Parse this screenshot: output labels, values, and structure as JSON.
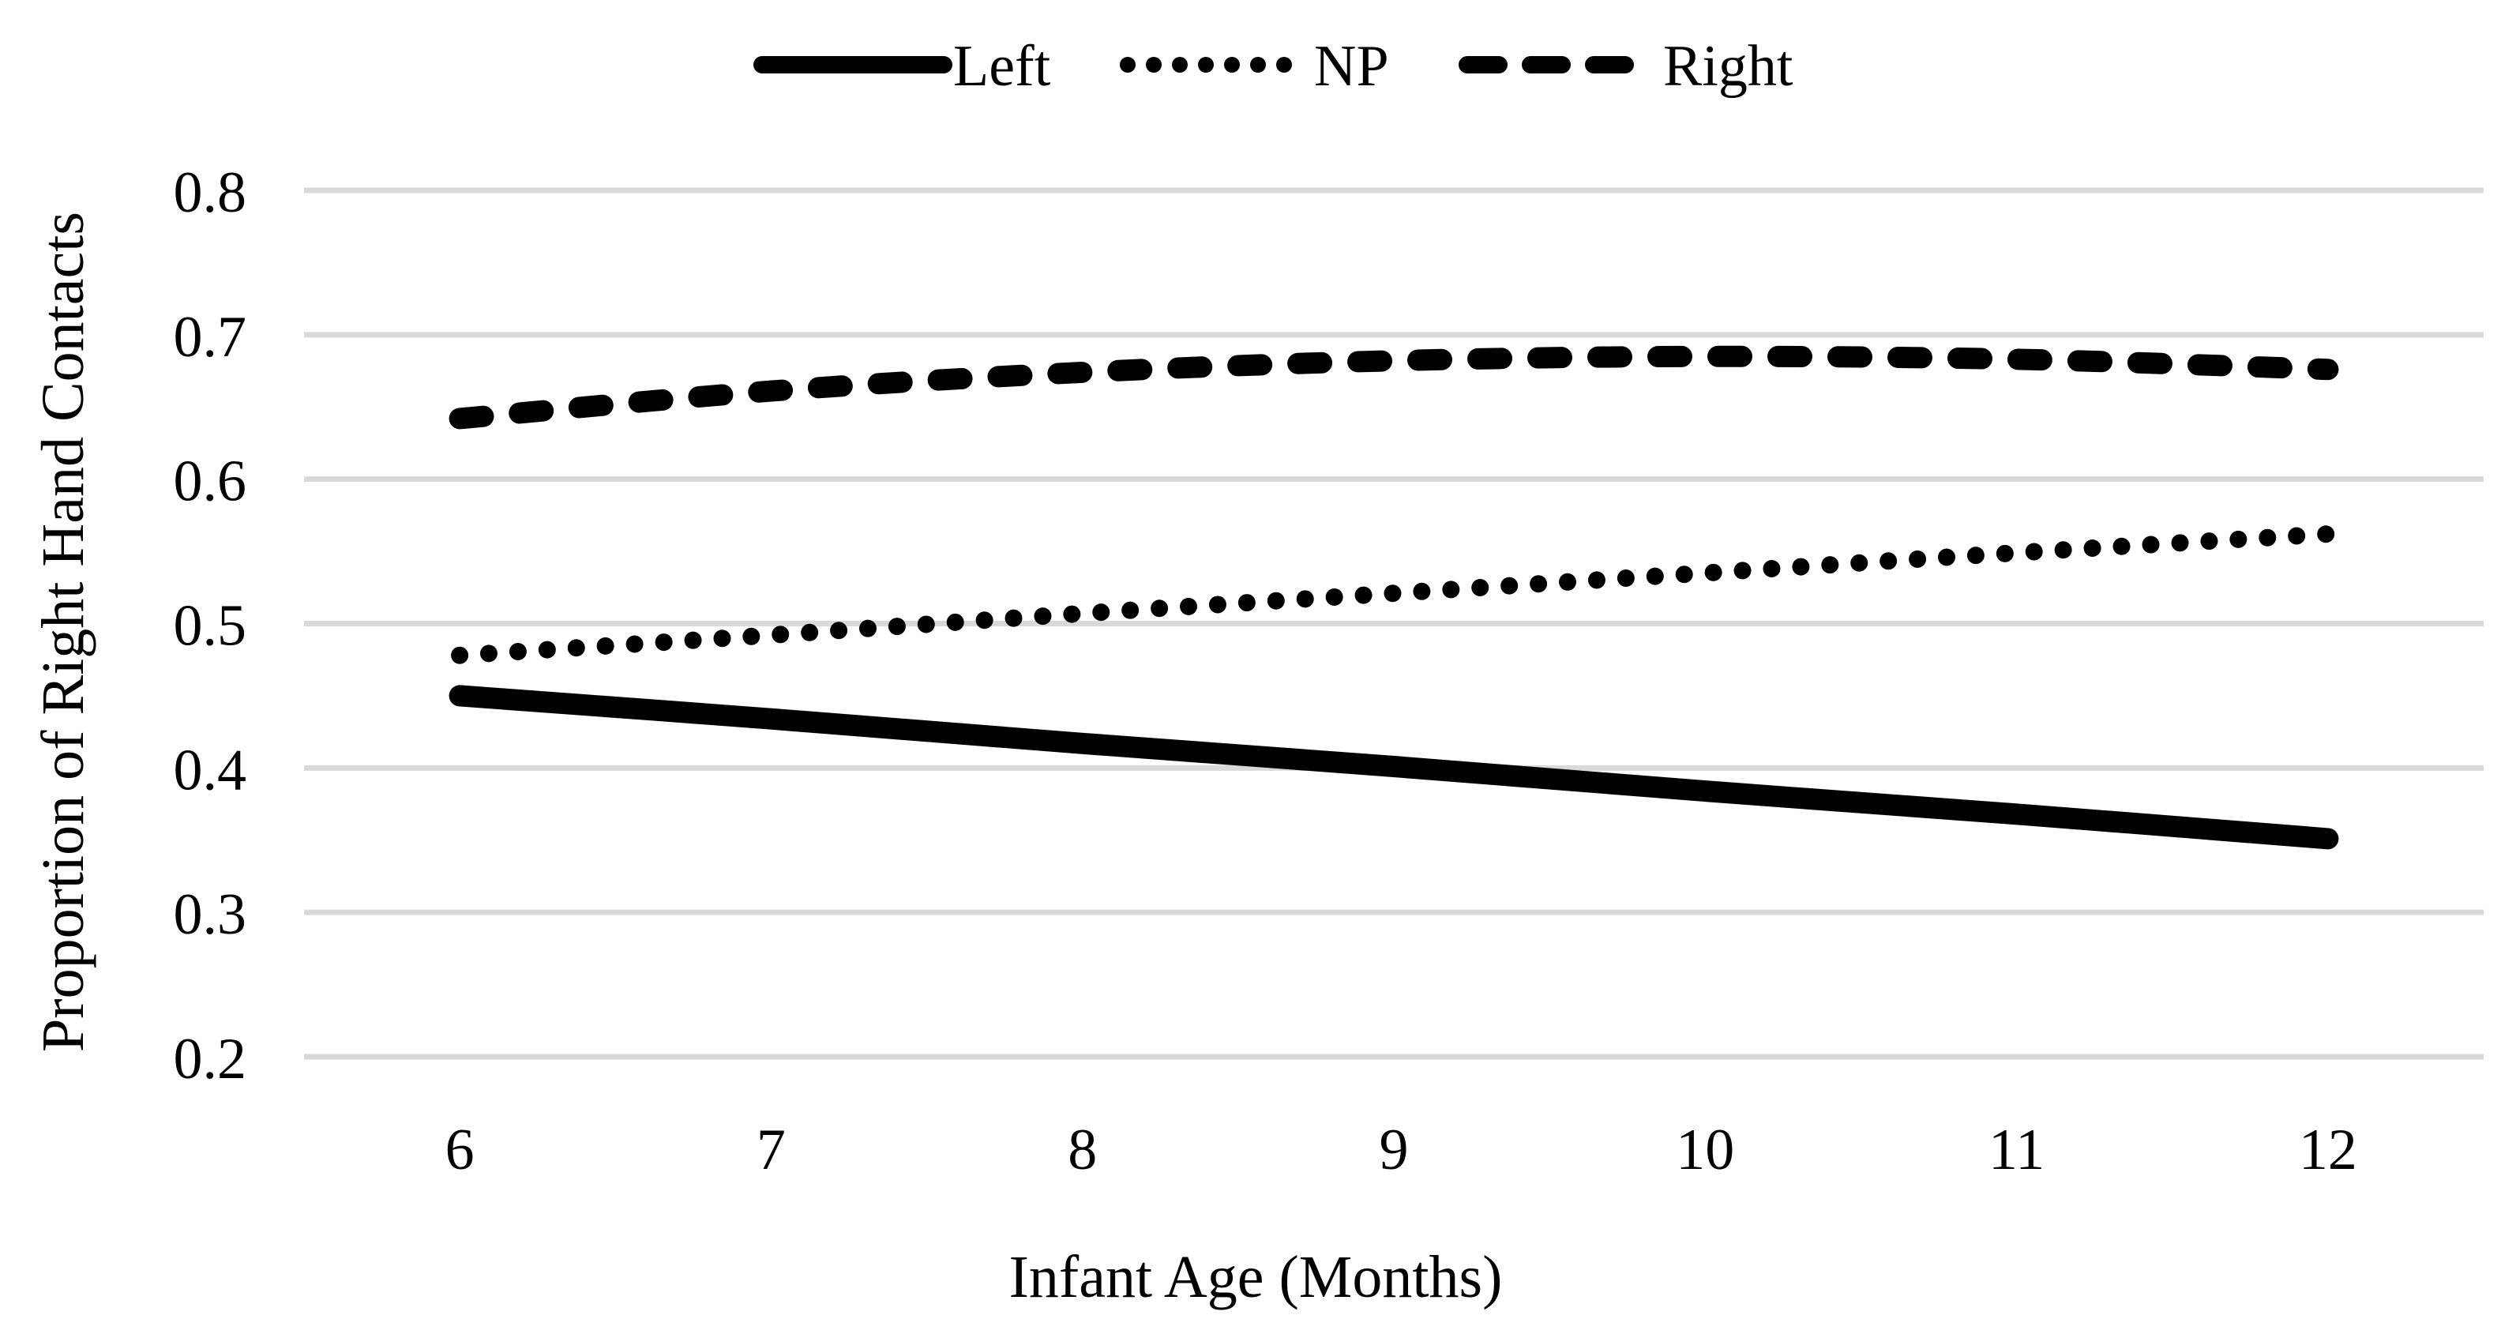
{
  "chart_data": {
    "type": "line",
    "title": "",
    "xlabel": "Infant Age (Months)",
    "ylabel": "Proportion of Right Hand Contacts",
    "xticks": [
      "6",
      "7",
      "8",
      "9",
      "10",
      "11",
      "12"
    ],
    "yticks": [
      "0.8",
      "0.7",
      "0.6",
      "0.5",
      "0.4",
      "0.3",
      "0.2"
    ],
    "xlim": [
      5.5,
      12.5
    ],
    "ylim": [
      0.2,
      0.8
    ],
    "grid": "horizontal-only",
    "gridline_color": "#d9d9d9",
    "series_color": "#000000",
    "background_color": "#ffffff",
    "x": [
      6,
      7,
      8,
      9,
      10,
      11,
      12
    ],
    "series": [
      {
        "name": "Left",
        "line_style": "solid",
        "values": [
          0.45,
          0.434,
          0.417,
          0.401,
          0.384,
          0.368,
          0.351
        ]
      },
      {
        "name": "NP",
        "line_style": "dotted",
        "values": [
          0.478,
          0.492,
          0.507,
          0.521,
          0.535,
          0.549,
          0.562
        ]
      },
      {
        "name": "Right",
        "line_style": "dashed",
        "values": [
          0.642,
          0.661,
          0.674,
          0.682,
          0.685,
          0.683,
          0.676
        ]
      }
    ],
    "legend": {
      "position": "top-center",
      "items": [
        {
          "label": "Left",
          "line_style": "solid"
        },
        {
          "label": "NP",
          "line_style": "dotted"
        },
        {
          "label": "Right",
          "line_style": "dashed"
        }
      ]
    }
  }
}
